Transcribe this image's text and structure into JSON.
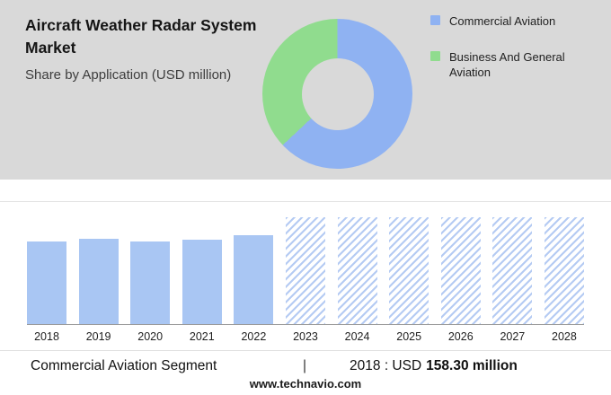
{
  "header": {
    "title": "Aircraft Weather Radar System Market",
    "subtitle": "Share by Application (USD million)"
  },
  "legend": {
    "items": [
      {
        "label": "Commercial Aviation",
        "color": "#8fb2f2"
      },
      {
        "label": "Business And General Aviation",
        "color": "#90dc8e"
      }
    ]
  },
  "chart_data": [
    {
      "type": "pie",
      "donut": true,
      "title": "Share by Application (USD million)",
      "labels": [
        "Commercial Aviation",
        "Business And General Aviation"
      ],
      "values_pct": [
        63,
        37
      ],
      "colors": [
        "#8fb2f2",
        "#90dc8e"
      ],
      "legend_position": "right"
    },
    {
      "type": "bar",
      "categories": [
        "2018",
        "2019",
        "2020",
        "2021",
        "2022",
        "2023",
        "2024",
        "2025",
        "2026",
        "2027",
        "2028"
      ],
      "relative_heights": [
        0.77,
        0.8,
        0.77,
        0.79,
        0.83,
        1,
        1,
        1,
        1,
        1,
        1
      ],
      "forecast_from": "2023",
      "known_values": {
        "2018": "158.30"
      },
      "unit": "USD million",
      "bar_color": "#a9c6f3",
      "hatch_color": "#b5cbf3",
      "xlabel": "",
      "ylabel": "",
      "grid": false
    }
  ],
  "footer": {
    "segment_label": "Commercial Aviation Segment",
    "separator": "|",
    "value_prefix": "2018 : USD",
    "value_bold": "158.30 million",
    "website": "www.technavio.com"
  }
}
